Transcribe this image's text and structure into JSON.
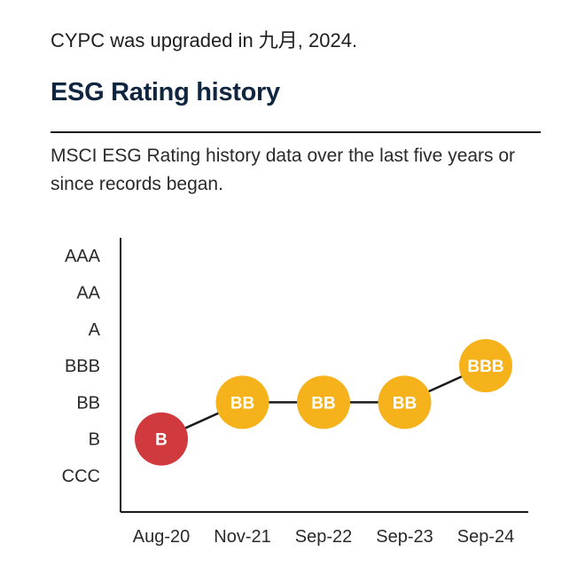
{
  "header": {
    "upgrade_text": "CYPC was upgraded in 九月, 2024.",
    "section_title": "ESG Rating history",
    "description": "MSCI ESG Rating history data over the last five years or since records began."
  },
  "colors": {
    "title": "#10253f",
    "rule": "#1a1a1a",
    "axis": "#1a1a1a",
    "line": "#1a1a1a",
    "laggard_marker": "#d03a3e",
    "average_marker": "#f6b21b",
    "marker_text": "#ffffff"
  },
  "chart_data": {
    "type": "line",
    "title": "",
    "xlabel": "",
    "ylabel": "",
    "categories": [
      "Aug-20",
      "Nov-21",
      "Sep-22",
      "Sep-23",
      "Sep-24"
    ],
    "y_levels": [
      "CCC",
      "B",
      "BB",
      "BBB",
      "A",
      "AA",
      "AAA"
    ],
    "series": [
      {
        "values": [
          "B",
          "BB",
          "BB",
          "BB",
          "BBB"
        ]
      }
    ],
    "grid": false,
    "legend": "none"
  }
}
